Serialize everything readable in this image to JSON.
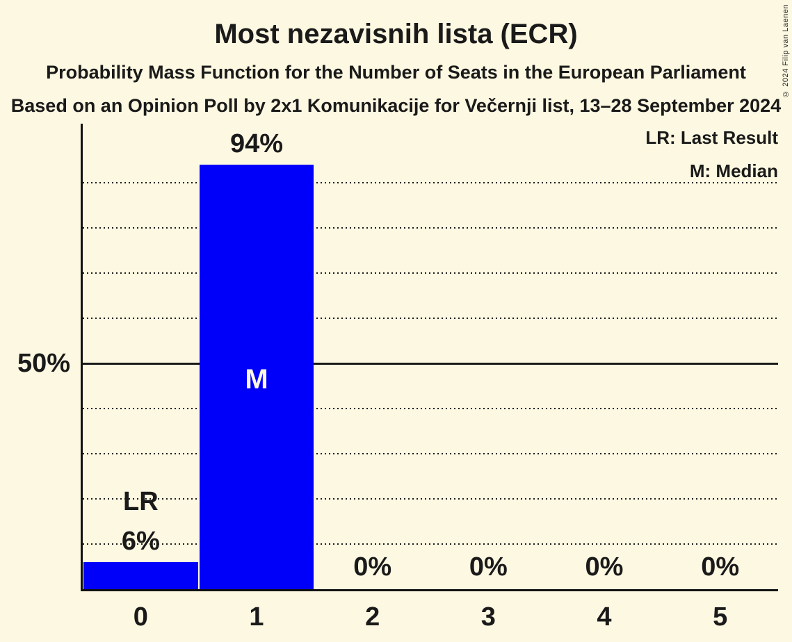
{
  "header": {
    "title": "Most nezavisnih lista (ECR)",
    "subtitle": "Probability Mass Function for the Number of Seats in the European Parliament",
    "poll_line": "Based on an Opinion Poll by 2x1 Komunikacije for Večernji list, 13–28 September 2024",
    "copyright": "© 2024 Filip van Laenen"
  },
  "legend": {
    "last_result": "LR: Last Result",
    "median": "M: Median"
  },
  "chart_data": {
    "type": "bar",
    "title": "Most nezavisnih lista (ECR)",
    "categories": [
      "0",
      "1",
      "2",
      "3",
      "4",
      "5"
    ],
    "values": [
      6,
      94,
      0,
      0,
      0,
      0
    ],
    "value_labels": [
      "6%",
      "94%",
      "0%",
      "0%",
      "0%",
      "0%"
    ],
    "bar_color": "#0000fa",
    "annotations": [
      {
        "category": "0",
        "label": "LR",
        "meaning": "Last Result",
        "placement": "above-bar"
      },
      {
        "category": "1",
        "label": "M",
        "meaning": "Median",
        "placement": "inside-bar"
      }
    ],
    "y_axis": {
      "tick_labels": [
        {
          "pct": 50,
          "label": "50%"
        }
      ],
      "solid_line_pct": 50,
      "dotted_gridlines_pct": [
        10,
        20,
        30,
        40,
        60,
        70,
        80,
        90
      ],
      "ylim": [
        0,
        103
      ]
    },
    "grid": "dotted horizontal every 10%",
    "legend_position": "top-right"
  }
}
